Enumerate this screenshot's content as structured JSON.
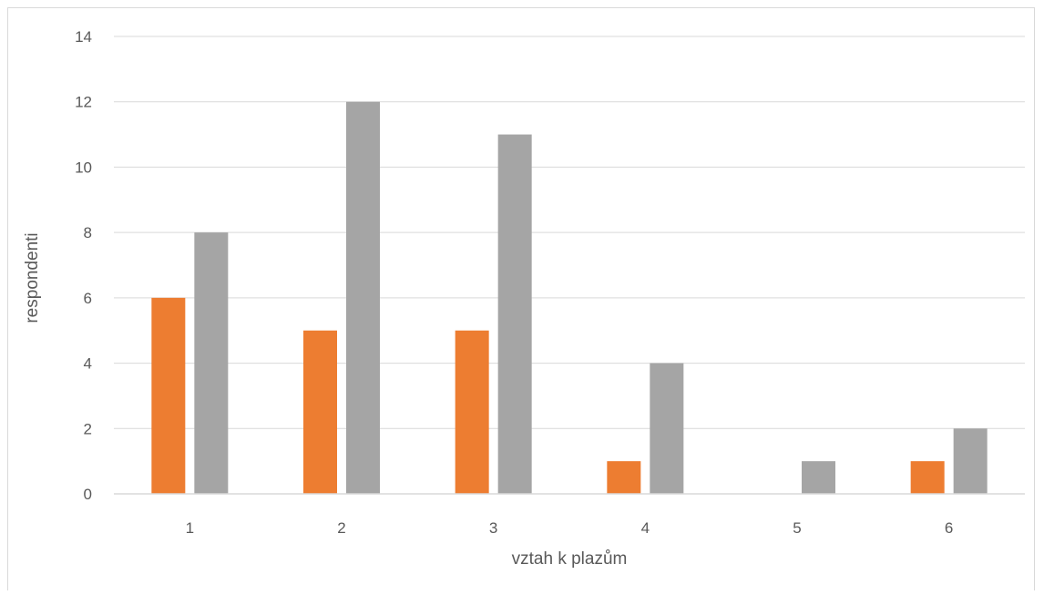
{
  "chart_data": {
    "type": "bar",
    "categories": [
      "1",
      "2",
      "3",
      "4",
      "5",
      "6"
    ],
    "series": [
      {
        "color": "#ED7D31",
        "values": [
          6,
          5,
          5,
          1,
          0,
          1
        ]
      },
      {
        "color": "#A5A5A5",
        "values": [
          8,
          12,
          11,
          4,
          1,
          2
        ]
      }
    ],
    "title": "",
    "xlabel": "vztah k plazům",
    "ylabel": "respondenti",
    "ylim": [
      0,
      14
    ],
    "yticks": [
      "0",
      "2",
      "4",
      "6",
      "8",
      "10",
      "12",
      "14"
    ],
    "grid": true,
    "legend": "none"
  }
}
